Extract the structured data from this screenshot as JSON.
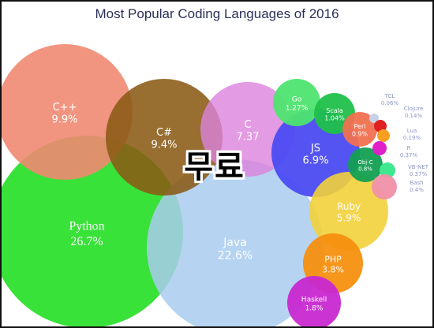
{
  "chart_data": {
    "type": "bubble",
    "title": "Most Popular Coding Languages of 2016",
    "series": [
      {
        "name": "Python",
        "label": "26.7%",
        "value": 26.7,
        "color": "#2ee02e",
        "text": "inside",
        "serif": true
      },
      {
        "name": "Java",
        "label": "22.6%",
        "value": 22.6,
        "color": "#a9cbef",
        "text": "inside"
      },
      {
        "name": "C++",
        "label": "9.9%",
        "value": 9.9,
        "color": "#ef8a72",
        "text": "inside"
      },
      {
        "name": "C#",
        "label": "9.4%",
        "value": 9.4,
        "color": "#8a5a14",
        "text": "inside"
      },
      {
        "name": "C",
        "label": "7.37",
        "value": 7.37,
        "color": "#dc82dc",
        "text": "inside"
      },
      {
        "name": "JS",
        "label": "6.9%",
        "value": 6.9,
        "color": "#4b4bf2",
        "text": "inside"
      },
      {
        "name": "Ruby",
        "label": "5.9%",
        "value": 5.9,
        "color": "#f2d23a",
        "text": "inside"
      },
      {
        "name": "PHP",
        "label": "3.8%",
        "value": 3.8,
        "color": "#f5900f",
        "text": "inside"
      },
      {
        "name": "Haskell",
        "label": "1.8%",
        "value": 1.8,
        "color": "#c828d0",
        "text": "inside"
      },
      {
        "name": "Go",
        "label": "1.27%",
        "value": 1.27,
        "color": "#4ee470",
        "text": "inside"
      },
      {
        "name": "Scala",
        "label": "1.04%",
        "value": 1.04,
        "color": "#20c04a",
        "text": "inside"
      },
      {
        "name": "Perl",
        "label": "0.9%",
        "value": 0.9,
        "color": "#f07050",
        "text": "inside"
      },
      {
        "name": "Obj-C",
        "label": "0.8%",
        "value": 0.8,
        "color": "#12a052",
        "text": "inside"
      },
      {
        "name": "TCL",
        "label": "0.06%",
        "value": 0.06,
        "color": "#c8d2e6",
        "text": "outside"
      },
      {
        "name": "Clojure",
        "label": "0.14%",
        "value": 0.14,
        "color": "#e02020",
        "text": "outside"
      },
      {
        "name": "Lua",
        "label": "0.19%",
        "value": 0.19,
        "color": "#f5a020",
        "text": "outside"
      },
      {
        "name": "R",
        "label": "0.37%",
        "value": 0.37,
        "color": "#e020c8",
        "text": "outside"
      },
      {
        "name": "VB-NET",
        "label": "0.37%",
        "value": 0.37,
        "color": "#40e890",
        "text": "outside"
      },
      {
        "name": "Bash",
        "label": "0.4%",
        "value": 0.4,
        "color": "#f090a8",
        "text": "outside"
      }
    ]
  },
  "overlay_text": "무료"
}
